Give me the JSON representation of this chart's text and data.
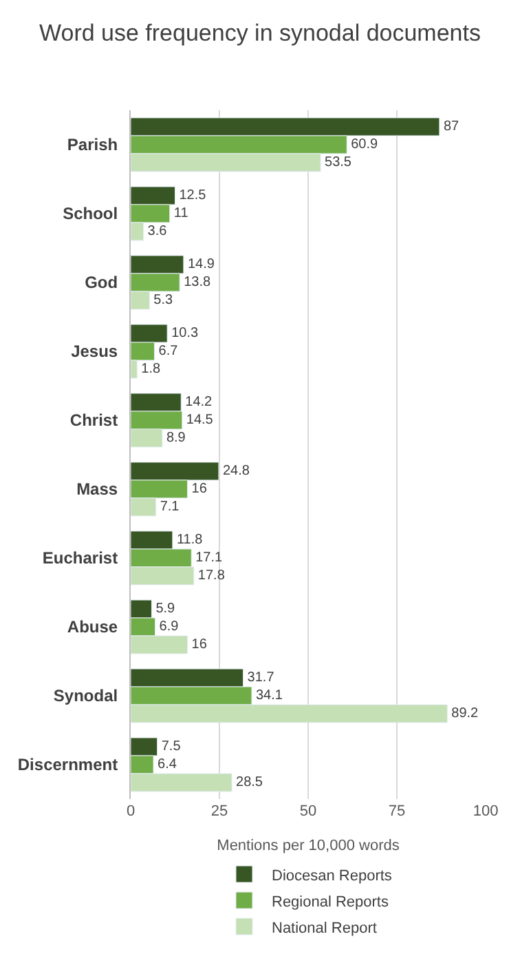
{
  "chart_data": {
    "type": "bar",
    "orientation": "horizontal",
    "title": "Word use frequency in synodal documents",
    "xlabel": "Mentions per 10,000 words",
    "categories": [
      "Parish",
      "School",
      "God",
      "Jesus",
      "Christ",
      "Mass",
      "Eucharist",
      "Abuse",
      "Synodal",
      "Discernment"
    ],
    "series": [
      {
        "name": "Diocesan Reports",
        "color": "#375623",
        "values": [
          87,
          12.5,
          14.9,
          10.3,
          14.2,
          24.8,
          11.8,
          5.9,
          31.7,
          7.5
        ]
      },
      {
        "name": "Regional Reports",
        "color": "#70ad47",
        "values": [
          60.9,
          11,
          13.8,
          6.7,
          14.5,
          16,
          17.1,
          6.9,
          34.1,
          6.4
        ]
      },
      {
        "name": "National Report",
        "color": "#c5e0b4",
        "values": [
          53.5,
          3.6,
          5.3,
          1.8,
          8.9,
          7.1,
          17.8,
          16,
          89.2,
          28.5
        ]
      }
    ],
    "xlim": [
      0,
      100
    ],
    "xticks": [
      0,
      25,
      50,
      75,
      100
    ],
    "grid": "x",
    "legend": "bottom",
    "data_labels": true
  }
}
